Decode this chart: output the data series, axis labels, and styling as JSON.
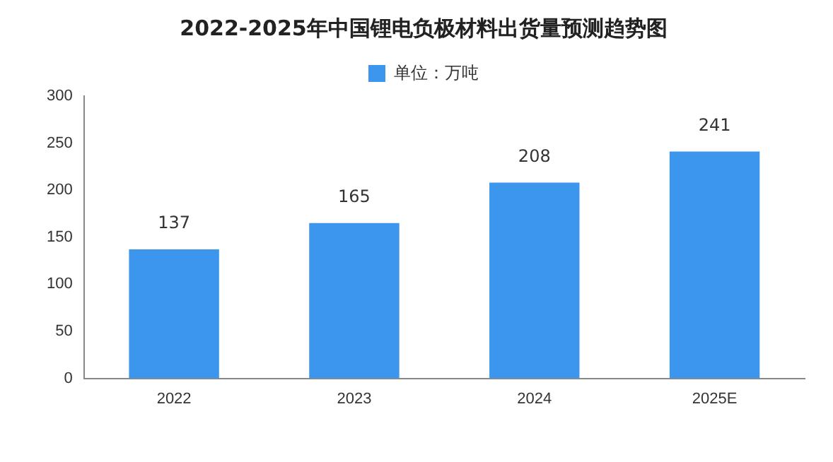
{
  "chart_data": {
    "type": "bar",
    "title": "2022-2025年中国锂电负极材料出货量预测趋势图",
    "categories": [
      "2022",
      "2023",
      "2024",
      "2025E"
    ],
    "series": [
      {
        "name": "单位：万吨",
        "color": "#3c96ee",
        "values": [
          137,
          165,
          208,
          241
        ]
      }
    ],
    "ylim": [
      0,
      300
    ],
    "yticks": [
      0,
      50,
      100,
      150,
      200,
      250,
      300
    ],
    "grid": false,
    "legend": "top",
    "data_labels": true
  }
}
